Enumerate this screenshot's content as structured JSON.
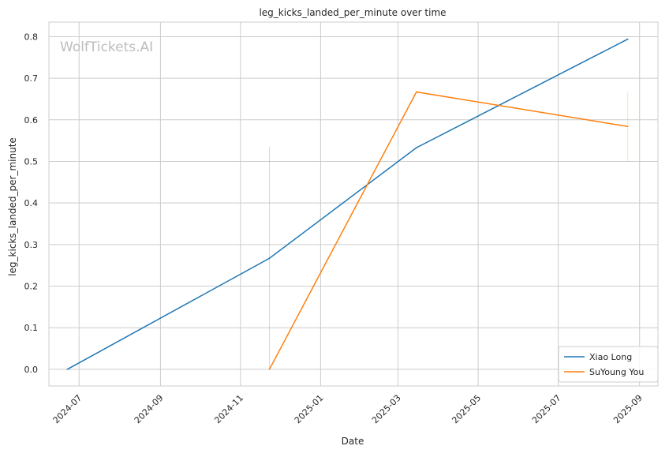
{
  "chart_data": {
    "type": "line",
    "title": "leg_kicks_landed_per_minute over time",
    "xlabel": "Date",
    "ylabel": "leg_kicks_landed_per_minute",
    "watermark": "WolfTickets.AI",
    "x_ticks": [
      "2024-07",
      "2024-09",
      "2024-11",
      "2025-01",
      "2025-03",
      "2025-05",
      "2025-07",
      "2025-09"
    ],
    "y_ticks": [
      "0.0",
      "0.1",
      "0.2",
      "0.3",
      "0.4",
      "0.5",
      "0.6",
      "0.7",
      "0.8"
    ],
    "xlim": [
      "2024-06-08",
      "2025-09-15"
    ],
    "ylim": [
      -0.04,
      0.835
    ],
    "grid": true,
    "legend_position": "lower-right",
    "series": [
      {
        "name": "Xiao Long",
        "color": "#1f77b4",
        "x": [
          "2024-06-22",
          "2024-11-23",
          "2025-03-15",
          "2025-08-23"
        ],
        "y": [
          0.0,
          0.267,
          0.533,
          0.794
        ],
        "band": {
          "x": "2024-11-23",
          "low": 0.0,
          "high": 0.535
        }
      },
      {
        "name": "SuYoung You",
        "color": "#ff7f0e",
        "x": [
          "2024-11-23",
          "2025-03-15",
          "2025-08-23"
        ],
        "y": [
          0.0,
          0.667,
          0.584
        ],
        "band": {
          "x": "2025-08-23",
          "low": 0.5,
          "high": 0.667
        }
      }
    ]
  }
}
